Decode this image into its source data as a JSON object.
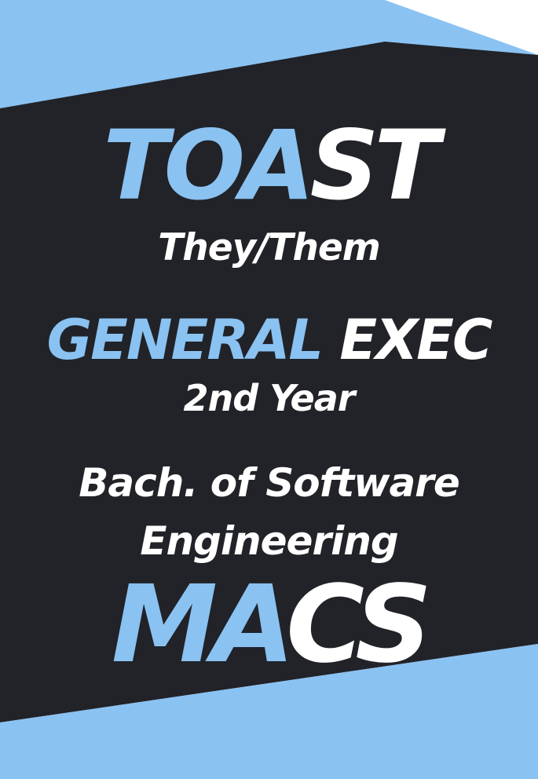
{
  "colors": {
    "accent": "#8ac2f2",
    "dark": "#212328",
    "white": "#ffffff"
  },
  "name": {
    "accent_part": "TOA",
    "white_part": "ST"
  },
  "pronouns": "They/Them",
  "role": {
    "accent_part": "GENERAL",
    "white_part": " EXEC"
  },
  "year": "2nd Year",
  "degree": {
    "line1": "Bach. of Software",
    "line2": "Engineering"
  },
  "club": {
    "accent_part": "MA",
    "white_part": "CS"
  }
}
